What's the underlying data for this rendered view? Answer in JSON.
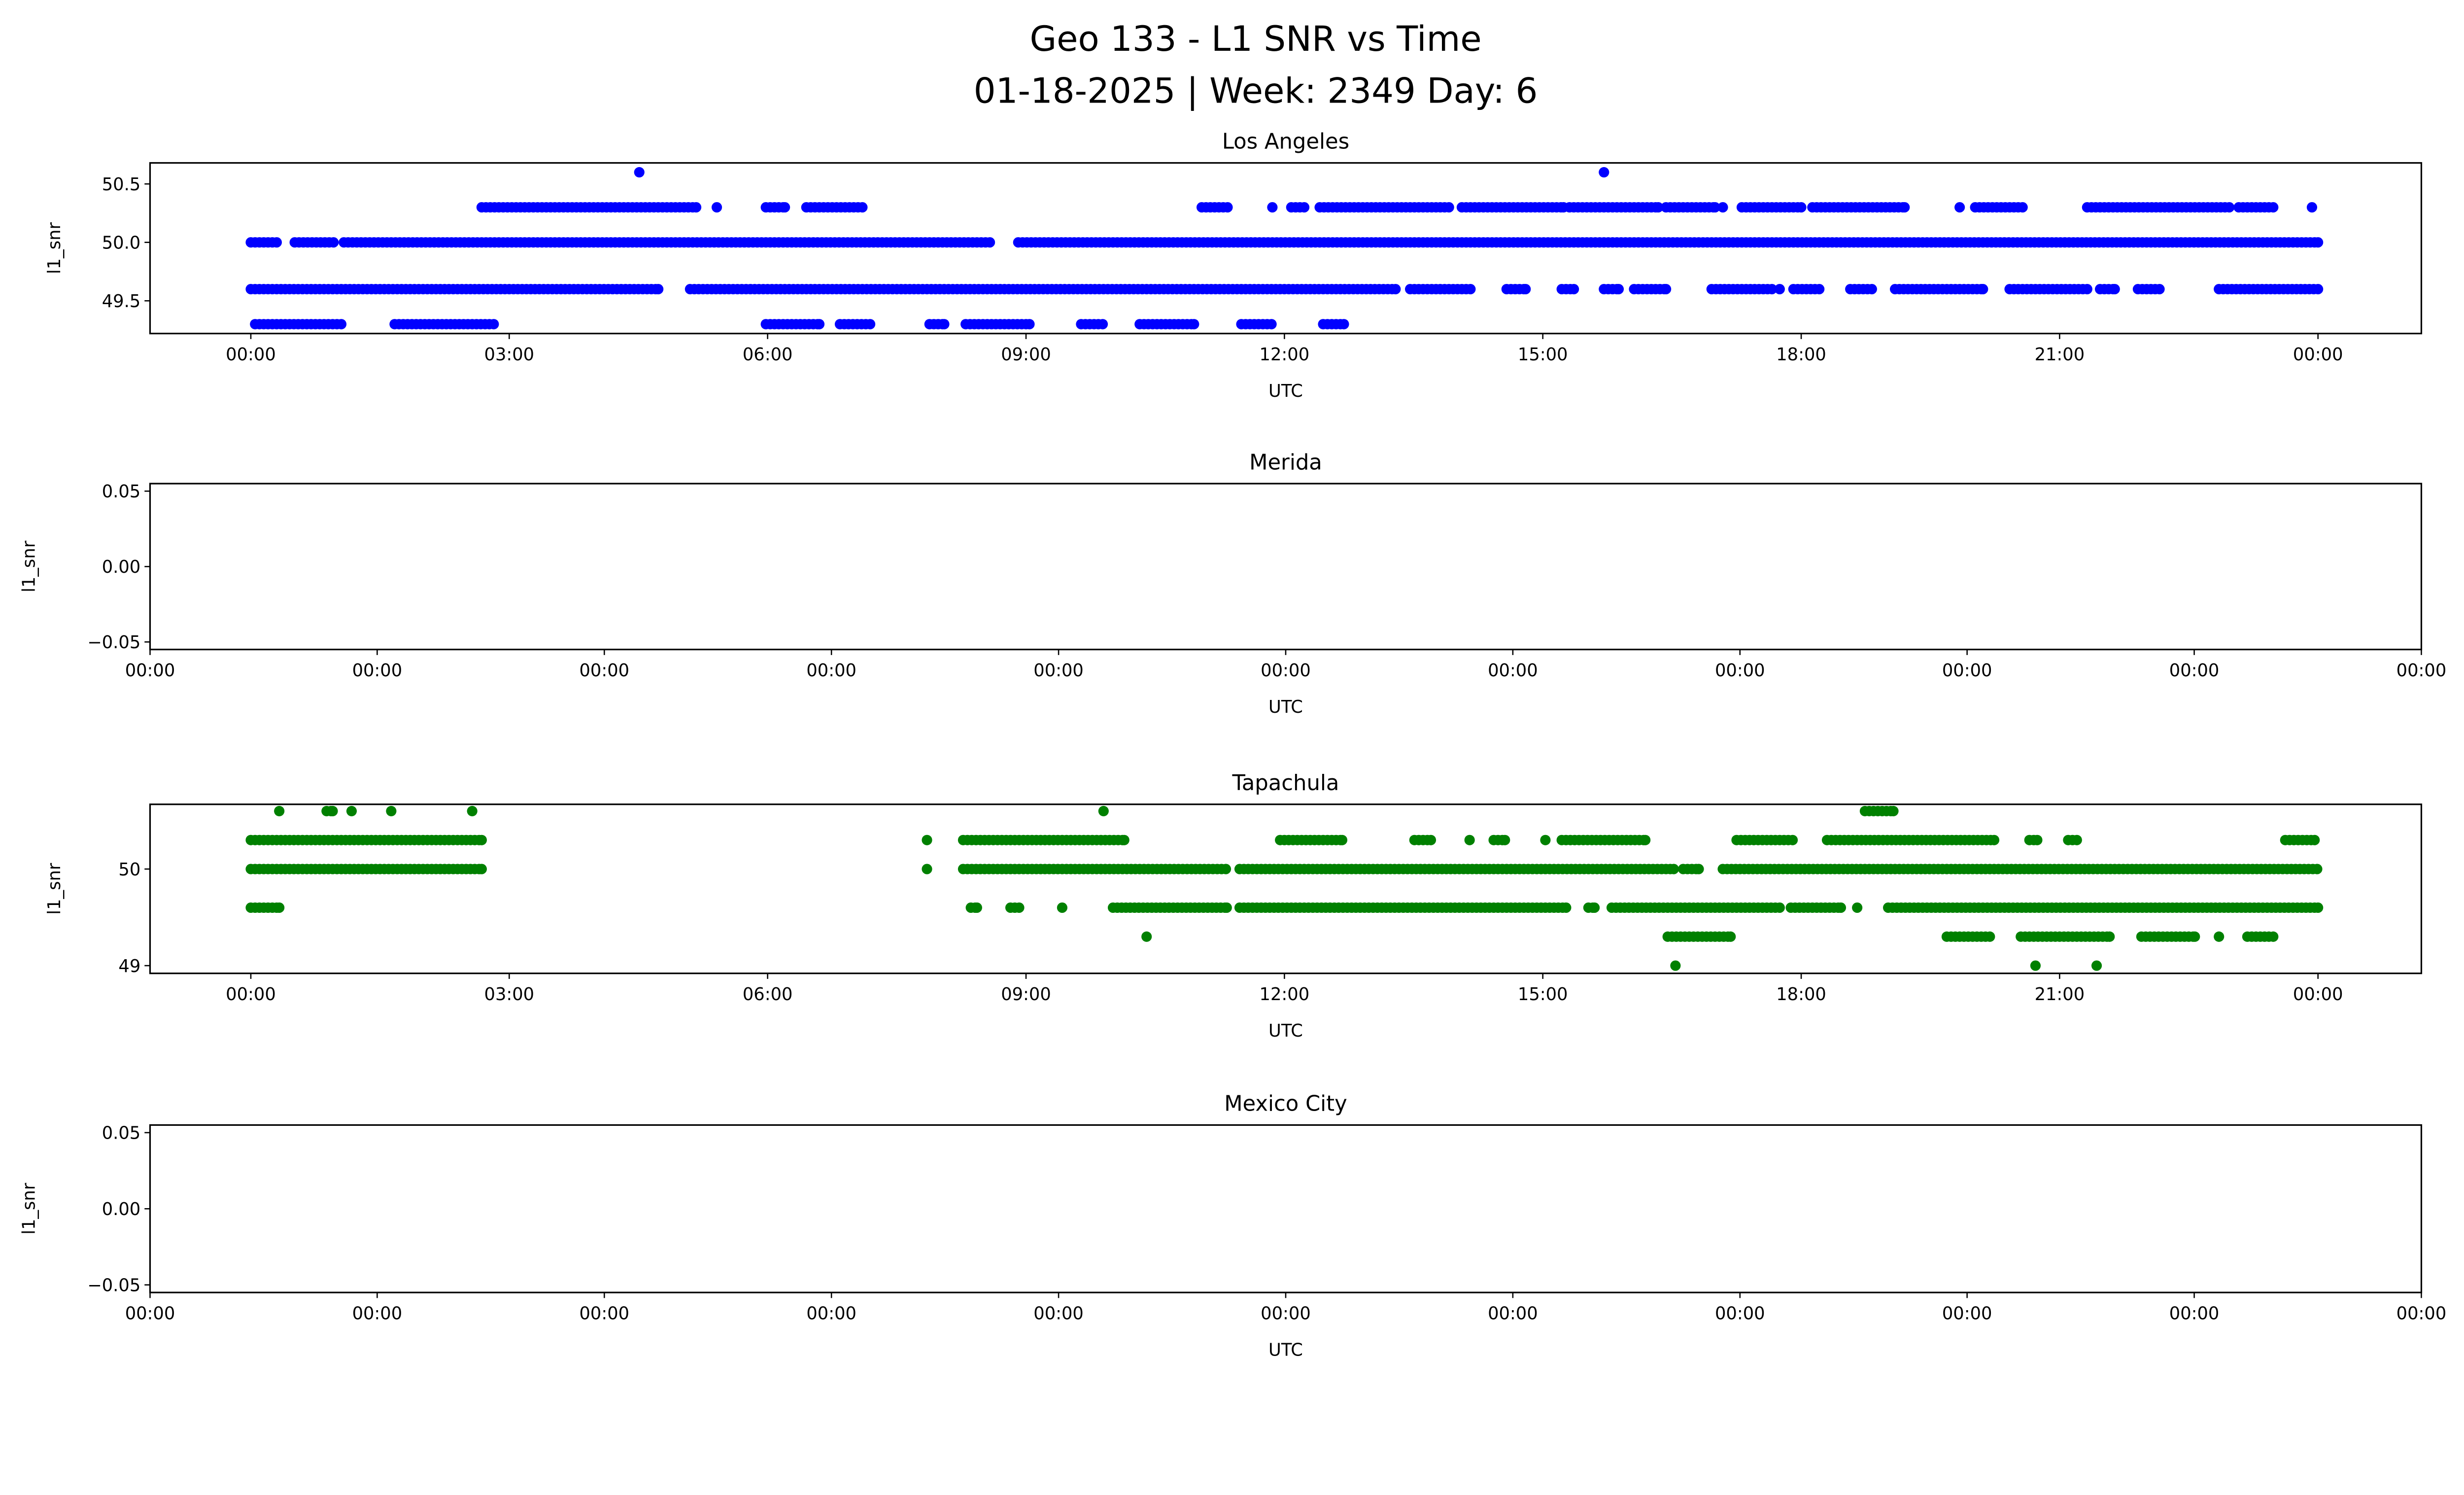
{
  "suptitle": [
    "Geo 133 - L1 SNR vs Time",
    "01-18-2025 | Week: 2349 Day: 6"
  ],
  "chart_data": [
    {
      "type": "scatter",
      "title": "Los Angeles",
      "xlabel": "UTC",
      "ylabel": "l1_snr",
      "color": "#0000ff",
      "xlim_hours": [
        -1.17,
        25.2
      ],
      "ylim": [
        49.22,
        50.68
      ],
      "xticks": [
        {
          "v": 0,
          "label": "00:00"
        },
        {
          "v": 3,
          "label": "03:00"
        },
        {
          "v": 6,
          "label": "06:00"
        },
        {
          "v": 9,
          "label": "09:00"
        },
        {
          "v": 12,
          "label": "12:00"
        },
        {
          "v": 15,
          "label": "15:00"
        },
        {
          "v": 18,
          "label": "18:00"
        },
        {
          "v": 21,
          "label": "21:00"
        },
        {
          "v": 24,
          "label": "00:00"
        }
      ],
      "yticks": [
        {
          "v": 49.5,
          "label": "49.5"
        },
        {
          "v": 50.0,
          "label": "50.0"
        },
        {
          "v": 50.5,
          "label": "50.5"
        }
      ],
      "series": [
        {
          "level": 50.6,
          "runs": [
            [
              4.51,
              4.51
            ],
            [
              15.71,
              15.71
            ]
          ]
        },
        {
          "level": 50.3,
          "runs": [
            [
              2.68,
              5.17
            ],
            [
              5.41,
              5.41
            ],
            [
              5.98,
              6.2
            ],
            [
              6.45,
              7.1
            ],
            [
              11.04,
              11.35
            ],
            [
              11.86,
              11.86
            ],
            [
              12.08,
              12.23
            ],
            [
              12.41,
              13.92
            ],
            [
              14.06,
              15.24
            ],
            [
              15.31,
              16.34
            ],
            [
              16.43,
              17.0
            ],
            [
              17.09,
              17.09
            ],
            [
              17.31,
              18.0
            ],
            [
              18.13,
              19.2
            ],
            [
              19.84,
              19.84
            ],
            [
              20.02,
              20.57
            ],
            [
              21.32,
              22.97
            ],
            [
              23.08,
              23.49
            ],
            [
              23.93,
              23.93
            ]
          ]
        },
        {
          "level": 50.0,
          "runs": [
            [
              0,
              0.3
            ],
            [
              0.51,
              0.97
            ],
            [
              1.08,
              8.58
            ],
            [
              8.91,
              24.0
            ]
          ]
        },
        {
          "level": 49.6,
          "runs": [
            [
              0,
              4.73
            ],
            [
              5.1,
              13.29
            ],
            [
              13.46,
              14.17
            ],
            [
              14.58,
              14.8
            ],
            [
              15.22,
              15.36
            ],
            [
              15.71,
              15.88
            ],
            [
              16.06,
              16.43
            ],
            [
              16.96,
              17.67
            ],
            [
              17.75,
              17.75
            ],
            [
              17.91,
              18.22
            ],
            [
              18.57,
              18.83
            ],
            [
              19.09,
              20.11
            ],
            [
              20.42,
              21.32
            ],
            [
              21.47,
              21.64
            ],
            [
              21.91,
              22.17
            ],
            [
              22.85,
              24.0
            ]
          ]
        },
        {
          "level": 49.3,
          "runs": [
            [
              0.05,
              1.06
            ],
            [
              1.67,
              2.82
            ],
            [
              5.98,
              6.6
            ],
            [
              6.84,
              7.19
            ],
            [
              7.88,
              8.05
            ],
            [
              8.3,
              9.04
            ],
            [
              9.64,
              9.9
            ],
            [
              10.32,
              10.95
            ],
            [
              11.5,
              11.86
            ],
            [
              12.45,
              12.69
            ]
          ]
        }
      ]
    },
    {
      "type": "scatter",
      "title": "Merida",
      "xlabel": "UTC",
      "ylabel": "l1_snr",
      "color": "#0000ff",
      "ylim": [
        -0.055,
        0.055
      ],
      "xticks": [
        {
          "label": "00:00"
        },
        {
          "label": "00:00"
        },
        {
          "label": "00:00"
        },
        {
          "label": "00:00"
        },
        {
          "label": "00:00"
        },
        {
          "label": "00:00"
        },
        {
          "label": "00:00"
        },
        {
          "label": "00:00"
        },
        {
          "label": "00:00"
        },
        {
          "label": "00:00"
        },
        {
          "label": "00:00"
        }
      ],
      "yticks": [
        {
          "v": -0.05,
          "label": "−0.05"
        },
        {
          "v": 0.0,
          "label": "0.00"
        },
        {
          "v": 0.05,
          "label": "0.05"
        }
      ],
      "series": []
    },
    {
      "type": "scatter",
      "title": "Tapachula",
      "xlabel": "UTC",
      "ylabel": "l1_snr",
      "color": "#008000",
      "xlim_hours": [
        -1.17,
        25.2
      ],
      "ylim": [
        48.92,
        50.67
      ],
      "xticks": [
        {
          "v": 0,
          "label": "00:00"
        },
        {
          "v": 3,
          "label": "03:00"
        },
        {
          "v": 6,
          "label": "06:00"
        },
        {
          "v": 9,
          "label": "09:00"
        },
        {
          "v": 12,
          "label": "12:00"
        },
        {
          "v": 15,
          "label": "15:00"
        },
        {
          "v": 18,
          "label": "18:00"
        },
        {
          "v": 21,
          "label": "21:00"
        },
        {
          "v": 24,
          "label": "00:00"
        }
      ],
      "yticks": [
        {
          "v": 49,
          "label": "49"
        },
        {
          "v": 50,
          "label": "50"
        }
      ],
      "series": [
        {
          "level": 50.6,
          "runs": [
            [
              0.33,
              0.33
            ],
            [
              0.88,
              0.95
            ],
            [
              1.17,
              1.17
            ],
            [
              1.63,
              1.63
            ],
            [
              2.57,
              2.57
            ],
            [
              9.9,
              9.9
            ],
            [
              18.74,
              19.07
            ]
          ]
        },
        {
          "level": 50.3,
          "runs": [
            [
              0,
              2.68
            ],
            [
              7.85,
              7.85
            ],
            [
              8.27,
              10.14
            ],
            [
              11.95,
              12.67
            ],
            [
              13.51,
              13.7
            ],
            [
              14.15,
              14.15
            ],
            [
              14.43,
              14.56
            ],
            [
              15.03,
              15.03
            ],
            [
              15.22,
              16.19
            ],
            [
              17.25,
              17.91
            ],
            [
              18.3,
              20.24
            ],
            [
              20.65,
              20.74
            ],
            [
              21.1,
              21.2
            ],
            [
              23.62,
              23.96
            ]
          ]
        },
        {
          "level": 50.0,
          "runs": [
            [
              0,
              2.68
            ],
            [
              7.85,
              7.85
            ],
            [
              8.27,
              11.33
            ],
            [
              11.48,
              16.52
            ],
            [
              16.63,
              16.81
            ],
            [
              17.09,
              24.0
            ]
          ]
        },
        {
          "level": 49.6,
          "runs": [
            [
              0,
              0.33
            ],
            [
              8.36,
              8.43
            ],
            [
              8.82,
              8.93
            ],
            [
              9.42,
              9.42
            ],
            [
              10.01,
              11.33
            ],
            [
              11.48,
              15.27
            ],
            [
              15.53,
              15.6
            ],
            [
              15.8,
              17.75
            ],
            [
              17.88,
              18.46
            ],
            [
              18.65,
              18.65
            ],
            [
              19.01,
              24.0
            ]
          ]
        },
        {
          "level": 49.3,
          "runs": [
            [
              10.4,
              10.4
            ],
            [
              16.45,
              17.18
            ],
            [
              19.69,
              20.19
            ],
            [
              20.55,
              21.58
            ],
            [
              21.95,
              22.57
            ],
            [
              22.85,
              22.85
            ],
            [
              23.18,
              23.49
            ]
          ]
        },
        {
          "level": 49.0,
          "runs": [
            [
              16.54,
              16.54
            ],
            [
              20.72,
              20.72
            ],
            [
              21.43,
              21.43
            ]
          ]
        }
      ]
    },
    {
      "type": "scatter",
      "title": "Mexico City",
      "xlabel": "UTC",
      "ylabel": "l1_snr",
      "color": "#0000ff",
      "ylim": [
        -0.055,
        0.055
      ],
      "xticks": [
        {
          "label": "00:00"
        },
        {
          "label": "00:00"
        },
        {
          "label": "00:00"
        },
        {
          "label": "00:00"
        },
        {
          "label": "00:00"
        },
        {
          "label": "00:00"
        },
        {
          "label": "00:00"
        },
        {
          "label": "00:00"
        },
        {
          "label": "00:00"
        },
        {
          "label": "00:00"
        },
        {
          "label": "00:00"
        }
      ],
      "yticks": [
        {
          "v": -0.05,
          "label": "−0.05"
        },
        {
          "v": 0.0,
          "label": "0.00"
        },
        {
          "v": 0.05,
          "label": "0.05"
        }
      ],
      "series": []
    }
  ]
}
